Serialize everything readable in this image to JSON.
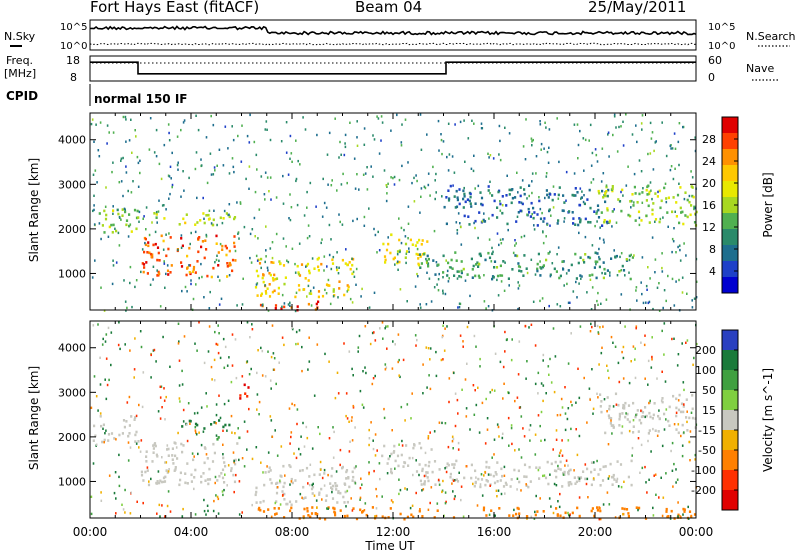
{
  "header": {
    "station": "Fort Hays East (fitACF)",
    "beam": "Beam 04",
    "date": "25/May/2011"
  },
  "panels": {
    "noise": {
      "left_label": "N.Sky",
      "right_label": "N.Search",
      "left_ticks": [
        "10^5",
        "10^0"
      ],
      "right_ticks": [
        "10^5",
        "10^0"
      ]
    },
    "freq": {
      "left_label_1": "Freq.",
      "left_label_2": "[MHz]",
      "right_label": "Nave",
      "left_ticks": [
        "18",
        "8"
      ],
      "right_ticks": [
        "60",
        "0"
      ]
    },
    "cpid": {
      "label": "CPID",
      "value": "normal 150 IF"
    }
  },
  "colorbars": {
    "power": {
      "title": "Power [dB]",
      "ticks": [
        "28",
        "24",
        "20",
        "16",
        "12",
        "8",
        "4"
      ],
      "colors": [
        "#e00000",
        "#ff4000",
        "#ff9000",
        "#ffc800",
        "#e8e800",
        "#a8d820",
        "#50b050",
        "#2a8a6a",
        "#1e6e8e",
        "#1e40c8",
        "#0000d0"
      ]
    },
    "velocity": {
      "title": "Velocity [m s^-1]",
      "ticks": [
        "200",
        "100",
        "50",
        "15",
        "-15",
        "-50",
        "-100",
        "-200"
      ],
      "colors": [
        "#2a40c0",
        "#1a7a3a",
        "#40a040",
        "#80d040",
        "#c8c8c0",
        "#f0b000",
        "#ff8000",
        "#ff3000",
        "#e00000"
      ]
    }
  },
  "chart_data": {
    "type": "heatmap",
    "xlabel": "Time UT",
    "ylabel": "Slant Range [km]",
    "xticks": [
      "00:00",
      "04:00",
      "08:00",
      "12:00",
      "16:00",
      "20:00",
      "00:00"
    ],
    "xlim_hours": [
      0,
      24
    ],
    "ylim_km": [
      180,
      4600
    ],
    "yticks": [
      1000,
      2000,
      3000,
      4000
    ],
    "freq_mhz": {
      "segments": [
        {
          "from_ut": 0.0,
          "to_ut": 1.9,
          "value": 16
        },
        {
          "from_ut": 1.9,
          "to_ut": 14.1,
          "value": 10.5
        },
        {
          "from_ut": 14.1,
          "to_ut": 24.0,
          "value": 16
        }
      ]
    },
    "power_features": [
      {
        "t0": 0.1,
        "t1": 1.9,
        "r0": 1900,
        "r1": 2500,
        "p": 14
      },
      {
        "t0": 2.0,
        "t1": 5.8,
        "r0": 950,
        "r1": 1900,
        "p": 26
      },
      {
        "t0": 2.5,
        "t1": 6.0,
        "r0": 2100,
        "r1": 2400,
        "p": 16
      },
      {
        "t0": 6.5,
        "t1": 10.5,
        "r0": 500,
        "r1": 1400,
        "p": 20
      },
      {
        "t0": 6.5,
        "t1": 9.0,
        "r0": 180,
        "r1": 400,
        "p": 28
      },
      {
        "t0": 11.5,
        "t1": 13.5,
        "r0": 1200,
        "r1": 1900,
        "p": 18
      },
      {
        "t0": 13.0,
        "t1": 21.5,
        "r0": 900,
        "r1": 1500,
        "p": 10
      },
      {
        "t0": 14.0,
        "t1": 20.5,
        "r0": 2100,
        "r1": 3000,
        "p": 6
      },
      {
        "t0": 20.0,
        "t1": 24.0,
        "r0": 2100,
        "r1": 3000,
        "p": 14
      }
    ],
    "velocity_features": [
      {
        "t0": 0.1,
        "t1": 1.9,
        "r0": 1900,
        "r1": 2500,
        "v": 0
      },
      {
        "t0": 2.0,
        "t1": 5.8,
        "r0": 950,
        "r1": 1900,
        "v": 0
      },
      {
        "t0": 3.0,
        "t1": 5.5,
        "r0": 2200,
        "r1": 2400,
        "v": 100
      },
      {
        "t0": 5.0,
        "t1": 6.2,
        "r0": 1950,
        "r1": 2050,
        "v": 50
      },
      {
        "t0": 5.8,
        "t1": 6.3,
        "r0": 2700,
        "r1": 3200,
        "v": -200
      },
      {
        "t0": 6.5,
        "t1": 10.5,
        "r0": 500,
        "r1": 1400,
        "v": 0
      },
      {
        "t0": 6.5,
        "t1": 24.0,
        "r0": 180,
        "r1": 450,
        "v": -60
      },
      {
        "t0": 11.5,
        "t1": 13.5,
        "r0": 1200,
        "r1": 1900,
        "v": 0
      },
      {
        "t0": 13.0,
        "t1": 21.5,
        "r0": 900,
        "r1": 1500,
        "v": 0
      },
      {
        "t0": 20.0,
        "t1": 24.0,
        "r0": 2100,
        "r1": 3000,
        "v": 0
      }
    ]
  }
}
